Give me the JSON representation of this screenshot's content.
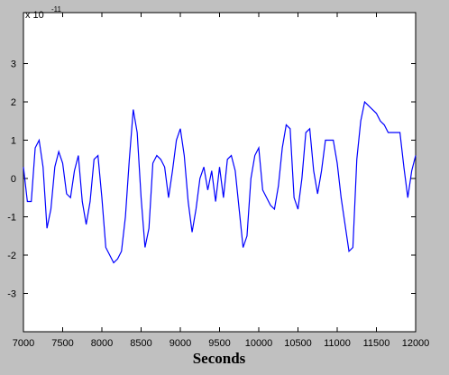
{
  "chart_data": {
    "type": "line",
    "xlabel": "Seconds",
    "y_multiplier": {
      "base": "x 10",
      "exponent": "-11"
    },
    "color": "#0000ff",
    "xlim": [
      7000,
      12000
    ],
    "ylim": [
      -4,
      4.33
    ],
    "xticks": [
      7000,
      7500,
      8000,
      8500,
      9000,
      9500,
      10000,
      10500,
      11000,
      11500,
      12000
    ],
    "yticks": [
      -3,
      -2,
      -1,
      0,
      1,
      2,
      3
    ],
    "x": [
      7000,
      7050,
      7100,
      7150,
      7200,
      7250,
      7300,
      7350,
      7400,
      7450,
      7500,
      7550,
      7600,
      7650,
      7700,
      7750,
      7800,
      7850,
      7900,
      7950,
      8000,
      8050,
      8100,
      8150,
      8200,
      8250,
      8300,
      8350,
      8400,
      8450,
      8500,
      8550,
      8600,
      8650,
      8700,
      8750,
      8800,
      8850,
      8900,
      8950,
      9000,
      9050,
      9100,
      9150,
      9200,
      9250,
      9300,
      9350,
      9400,
      9450,
      9500,
      9550,
      9600,
      9650,
      9700,
      9750,
      9800,
      9850,
      9900,
      9950,
      10000,
      10050,
      10100,
      10150,
      10200,
      10250,
      10300,
      10350,
      10400,
      10450,
      10500,
      10550,
      10600,
      10650,
      10700,
      10750,
      10800,
      10850,
      10900,
      10950,
      11000,
      11050,
      11100,
      11150,
      11200,
      11250,
      11300,
      11350,
      11400,
      11450,
      11500,
      11550,
      11600,
      11650,
      11700,
      11750,
      11800,
      11850,
      11900,
      11950,
      12000
    ],
    "values": [
      0.3,
      -0.6,
      -0.6,
      0.8,
      1.0,
      0.3,
      -1.3,
      -0.8,
      0.3,
      0.7,
      0.4,
      -0.4,
      -0.5,
      0.2,
      0.6,
      -0.6,
      -1.2,
      -0.6,
      0.5,
      0.6,
      -0.5,
      -1.8,
      -2.0,
      -2.2,
      -2.1,
      -1.9,
      -1.0,
      0.5,
      1.8,
      1.2,
      -0.5,
      -1.8,
      -1.3,
      0.4,
      0.6,
      0.5,
      0.3,
      -0.5,
      0.2,
      1.0,
      1.3,
      0.6,
      -0.6,
      -1.4,
      -0.8,
      0.0,
      0.3,
      -0.3,
      0.2,
      -0.6,
      0.3,
      -0.5,
      0.5,
      0.6,
      0.2,
      -0.8,
      -1.8,
      -1.5,
      0.0,
      0.6,
      0.8,
      -0.3,
      -0.5,
      -0.7,
      -0.8,
      -0.2,
      0.8,
      1.4,
      1.3,
      -0.5,
      -0.8,
      0.0,
      1.2,
      1.3,
      0.2,
      -0.4,
      0.2,
      1.0,
      1.0,
      1.0,
      0.4,
      -0.5,
      -1.2,
      -1.9,
      -1.8,
      0.5,
      1.5,
      2.0,
      1.9,
      1.8,
      1.7,
      1.5,
      1.4,
      1.2,
      1.2,
      1.2,
      1.2,
      0.3,
      -0.5,
      0.2,
      0.6
    ]
  }
}
